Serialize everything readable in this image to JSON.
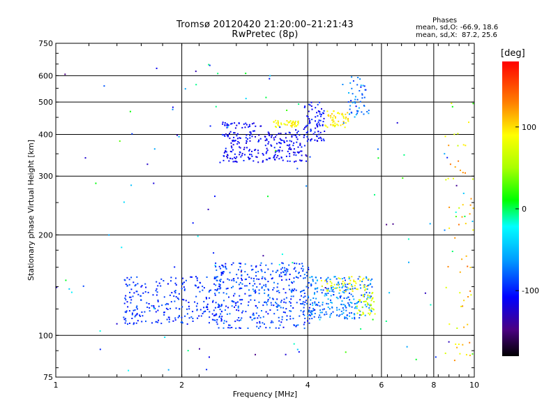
{
  "chart_data": {
    "type": "scatter",
    "title": "Tromsø 20120420 21:20:00–21:21:43",
    "subtitle": "RwPretec (8p)",
    "xlabel": "Frequency [MHz]",
    "ylabel": "Stationary phase Virtual Height [km]",
    "xscale": "log",
    "yscale": "log",
    "xlim": [
      1,
      10
    ],
    "ylim": [
      75,
      750
    ],
    "xticks": [
      {
        "value": 1,
        "label": "1"
      },
      {
        "value": 2,
        "label": "2"
      },
      {
        "value": 4,
        "label": "4"
      },
      {
        "value": 6,
        "label": "6"
      },
      {
        "value": 8,
        "label": "8"
      },
      {
        "value": 10,
        "label": "10"
      }
    ],
    "yticks": [
      {
        "value": 75,
        "label": "75"
      },
      {
        "value": 100,
        "label": "100"
      },
      {
        "value": 200,
        "label": "200"
      },
      {
        "value": 300,
        "label": "300"
      },
      {
        "value": 400,
        "label": "400"
      },
      {
        "value": 500,
        "label": "500"
      },
      {
        "value": 600,
        "label": "600"
      },
      {
        "value": 750,
        "label": "750"
      }
    ],
    "grid": true,
    "stats": {
      "heading": "Phases",
      "o_line": "mean, sd,O: -66.9, 18.6",
      "x_line": "mean, sd,X:  87.2, 25.6"
    },
    "colorbar": {
      "label": "[deg]",
      "range": [
        -180,
        180
      ],
      "ticks": [
        {
          "value": 100,
          "label": "100"
        },
        {
          "value": 0,
          "label": "0"
        },
        {
          "value": -100,
          "label": "-100"
        }
      ]
    },
    "series": [
      {
        "clusters": [
          {
            "f0": 1.45,
            "f1": 2.5,
            "h0": 108,
            "h1": 150,
            "n": 260,
            "phase": -95,
            "spread": 15
          },
          {
            "f0": 2.4,
            "f1": 4.1,
            "h0": 105,
            "h1": 165,
            "n": 420,
            "phase": -90,
            "spread": 20
          },
          {
            "f0": 4.0,
            "f1": 5.7,
            "h0": 112,
            "h1": 150,
            "n": 240,
            "phase": -70,
            "spread": 25
          },
          {
            "f0": 5.2,
            "f1": 5.8,
            "h0": 115,
            "h1": 135,
            "n": 40,
            "phase": 70,
            "spread": 20
          },
          {
            "f0": 4.3,
            "f1": 5.6,
            "h0": 135,
            "h1": 150,
            "n": 50,
            "phase": 85,
            "spread": 15
          },
          {
            "f0": 2.5,
            "f1": 4.0,
            "h0": 330,
            "h1": 410,
            "n": 240,
            "phase": -110,
            "spread": 15
          },
          {
            "f0": 2.5,
            "f1": 3.1,
            "h0": 415,
            "h1": 435,
            "n": 30,
            "phase": -110,
            "spread": 10
          },
          {
            "f0": 3.3,
            "f1": 3.8,
            "h0": 420,
            "h1": 440,
            "n": 45,
            "phase": 90,
            "spread": 15
          },
          {
            "f0": 3.9,
            "f1": 4.4,
            "h0": 380,
            "h1": 500,
            "n": 80,
            "phase": -105,
            "spread": 15
          },
          {
            "f0": 4.4,
            "f1": 5.0,
            "h0": 420,
            "h1": 470,
            "n": 50,
            "phase": 95,
            "spread": 15
          },
          {
            "f0": 5.0,
            "f1": 5.6,
            "h0": 450,
            "h1": 600,
            "n": 50,
            "phase": -80,
            "spread": 30
          },
          {
            "f0": 8.5,
            "f1": 10.0,
            "h0": 80,
            "h1": 500,
            "n": 60,
            "phase": 100,
            "spread": 40
          },
          {
            "f0": 1.0,
            "f1": 10.0,
            "h0": 78,
            "h1": 650,
            "n": 120,
            "phase": -60,
            "spread": 90
          }
        ]
      }
    ]
  }
}
